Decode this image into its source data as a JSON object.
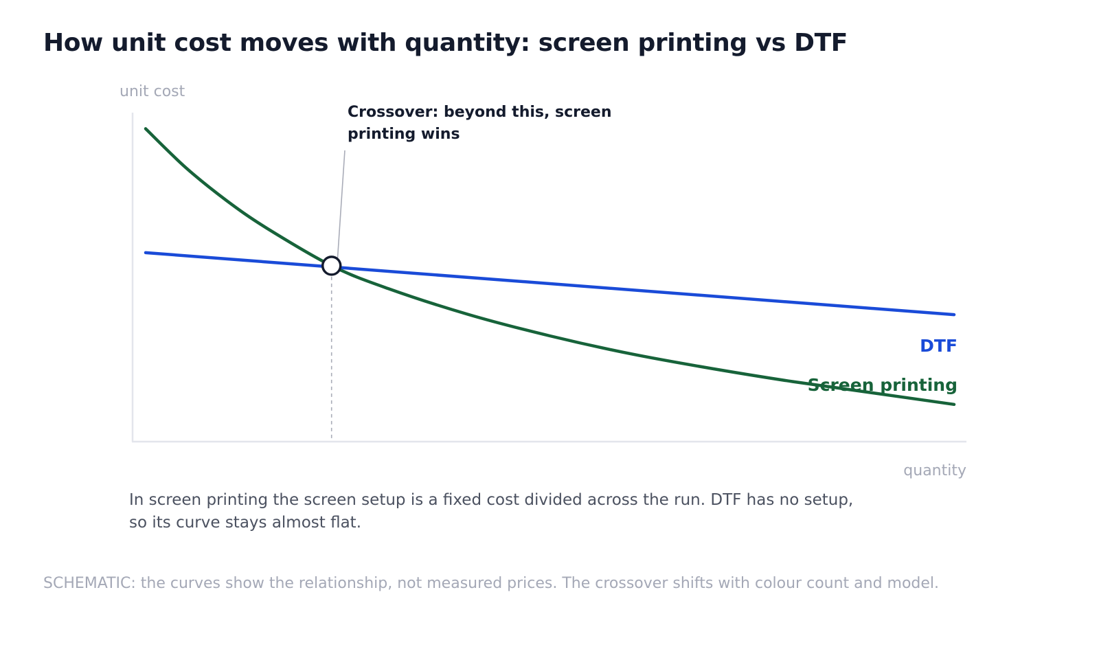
{
  "page": {
    "title": "How unit cost moves with quantity: screen printing vs DTF",
    "caption": "In screen printing the screen setup is a fixed cost divided across the run. DTF has no setup, so its curve stays almost flat.",
    "footnote": "SCHEMATIC: the curves show the relationship, not measured prices. The crossover shifts with colour count and model."
  },
  "chart_data": {
    "type": "line",
    "title": "How unit cost moves with quantity: screen printing vs DTF",
    "xlabel": "quantity",
    "ylabel": "unit cost",
    "schematic": true,
    "grid": false,
    "legend": "direct labels at right end of lines",
    "xlim": [
      0,
      1
    ],
    "ylim": [
      0,
      1
    ],
    "series": [
      {
        "name": "Screen printing",
        "color": "#17633a",
        "x": [
          0.0,
          0.05,
          0.1,
          0.15,
          0.23,
          0.3,
          0.4,
          0.5,
          0.6,
          0.7,
          0.8,
          0.9,
          1.0
        ],
        "y": [
          0.955,
          0.835,
          0.735,
          0.65,
          0.535,
          0.465,
          0.385,
          0.32,
          0.265,
          0.22,
          0.18,
          0.145,
          0.11
        ]
      },
      {
        "name": "DTF",
        "color": "#1a4bd8",
        "x": [
          0.0,
          1.0
        ],
        "y": [
          0.575,
          0.385
        ]
      }
    ],
    "annotations": [
      {
        "text": "Crossover: beyond this, screen printing wins",
        "x": 0.23,
        "y": 0.535
      }
    ]
  }
}
